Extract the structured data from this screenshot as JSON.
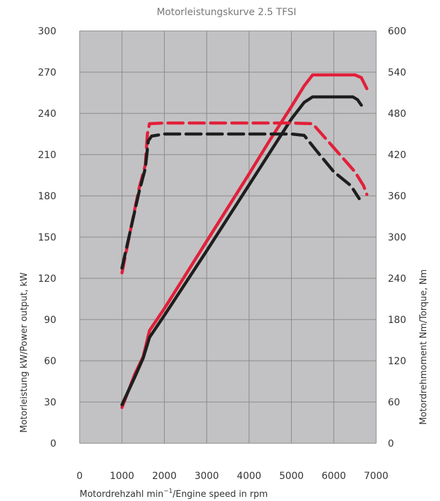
{
  "chart_data": {
    "type": "line",
    "title": "Motorleistungskurve 2.5 TFSI",
    "xlabel_main": "Motordrehzahl min",
    "xlabel_sup": "−1",
    "xlabel_rest": "/Engine speed in rpm",
    "ylabel_left": "Motorleistung kW/Power output, kW",
    "ylabel_right": "Motordrehmoment Nm/Torque, Nm",
    "xlim": [
      0,
      7000
    ],
    "ylim_left": [
      0,
      300
    ],
    "ylim_right": [
      0,
      600
    ],
    "x_ticks": [
      "0",
      "1000",
      "2000",
      "3000",
      "4000",
      "5000",
      "6000",
      "7000"
    ],
    "y_left_ticks": [
      "0",
      "30",
      "60",
      "90",
      "120",
      "150",
      "180",
      "210",
      "240",
      "270",
      "300"
    ],
    "y_right_ticks": [
      "0",
      "60",
      "120",
      "180",
      "240",
      "300",
      "360",
      "420",
      "480",
      "540",
      "600"
    ],
    "grid": true,
    "background": "#c2c2c4",
    "series": [
      {
        "axis": "left",
        "color": "#e2203a",
        "dash": false,
        "points": [
          [
            1000,
            26
          ],
          [
            1300,
            50
          ],
          [
            1500,
            63
          ],
          [
            1650,
            82
          ],
          [
            2000,
            98
          ],
          [
            3000,
            147
          ],
          [
            4000,
            196
          ],
          [
            4500,
            221
          ],
          [
            5000,
            245
          ],
          [
            5300,
            260
          ],
          [
            5500,
            268
          ],
          [
            6500,
            268
          ],
          [
            6650,
            266
          ],
          [
            6780,
            258
          ]
        ]
      },
      {
        "axis": "left",
        "color": "#1e1e1e",
        "dash": false,
        "points": [
          [
            1000,
            28
          ],
          [
            1300,
            48
          ],
          [
            1500,
            62
          ],
          [
            1650,
            77
          ],
          [
            2000,
            93
          ],
          [
            3000,
            140
          ],
          [
            4000,
            188
          ],
          [
            4500,
            212
          ],
          [
            5000,
            236
          ],
          [
            5300,
            248
          ],
          [
            5500,
            252
          ],
          [
            6450,
            252
          ],
          [
            6560,
            250
          ],
          [
            6650,
            246
          ]
        ]
      },
      {
        "axis": "right",
        "color": "#e2203a",
        "dash": true,
        "points": [
          [
            1000,
            248
          ],
          [
            1200,
            310
          ],
          [
            1400,
            370
          ],
          [
            1550,
            405
          ],
          [
            1600,
            450
          ],
          [
            1650,
            465
          ],
          [
            2000,
            466
          ],
          [
            5000,
            466
          ],
          [
            5500,
            465
          ],
          [
            6000,
            430
          ],
          [
            6500,
            395
          ],
          [
            6700,
            375
          ],
          [
            6780,
            362
          ]
        ]
      },
      {
        "axis": "right",
        "color": "#1e1e1e",
        "dash": true,
        "points": [
          [
            1000,
            255
          ],
          [
            1200,
            310
          ],
          [
            1400,
            365
          ],
          [
            1550,
            400
          ],
          [
            1620,
            440
          ],
          [
            1700,
            447
          ],
          [
            2000,
            450
          ],
          [
            5000,
            450
          ],
          [
            5300,
            448
          ],
          [
            5600,
            425
          ],
          [
            6000,
            395
          ],
          [
            6400,
            375
          ],
          [
            6600,
            356
          ]
        ]
      }
    ]
  }
}
